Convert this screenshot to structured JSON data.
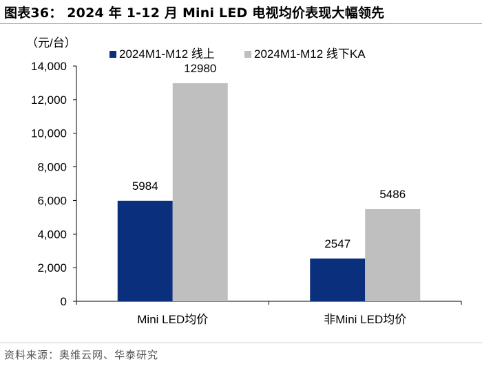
{
  "figure_title": "图表36：  2024 年 1-12 月 Mini LED  电视均价表现大幅领先",
  "source_note": "资料来源：奥维云网、华泰研究",
  "colors": {
    "online": "#0a2f7d",
    "offline": "#bfbfbf",
    "axis": "#000000",
    "rule": "#9a9a9a"
  },
  "chart_data": {
    "type": "bar",
    "title": "2024 年 1-12 月 Mini LED  电视均价表现大幅领先",
    "unit_label": "（元/台）",
    "categories": [
      "Mini LED均价",
      "非Mini LED均价"
    ],
    "series": [
      {
        "name": "2024M1-M12  线上",
        "values": [
          5984,
          2547
        ],
        "color": "#0a2f7d"
      },
      {
        "name": "2024M1-M12  线下KA",
        "values": [
          12980,
          5486
        ],
        "color": "#bfbfbf"
      }
    ],
    "ylim": [
      0,
      14000
    ],
    "yticks": [
      0,
      2000,
      4000,
      6000,
      8000,
      10000,
      12000,
      14000
    ],
    "ytick_labels": [
      "0",
      "2,000",
      "4,000",
      "6,000",
      "8,000",
      "10,000",
      "12,000",
      "14,000"
    ],
    "data_labels": [
      [
        "5984",
        "2547"
      ],
      [
        "12980",
        "5486"
      ]
    ],
    "legend_position": "top",
    "grid": false
  }
}
